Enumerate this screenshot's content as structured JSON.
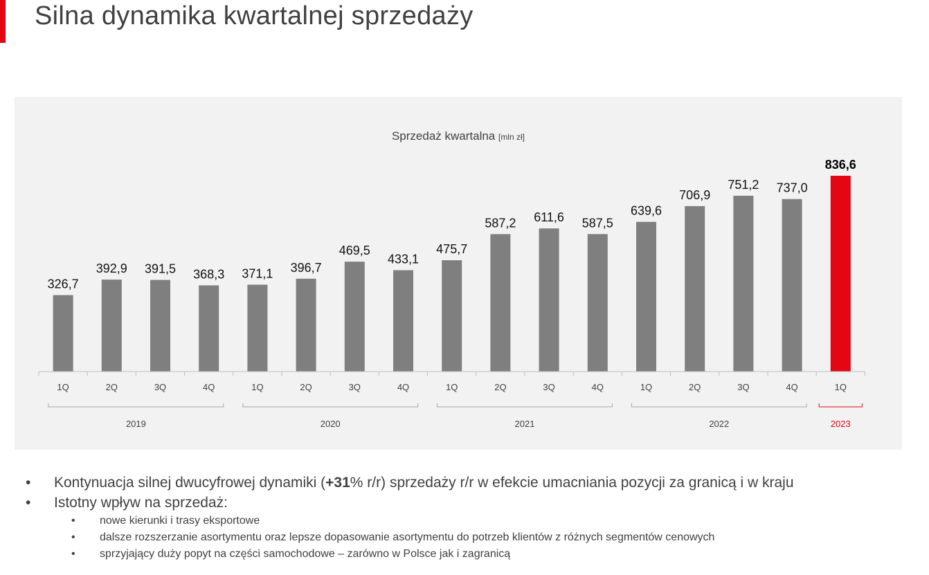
{
  "page": {
    "title": "Silna dynamika kwartalnej sprzedaży",
    "accent_color": "#e30613"
  },
  "chart_data": {
    "type": "bar",
    "title": "Sprzedaż kwartalna",
    "title_unit": "[mln zł]",
    "categories": [
      "1Q",
      "2Q",
      "3Q",
      "4Q",
      "1Q",
      "2Q",
      "3Q",
      "4Q",
      "1Q",
      "2Q",
      "3Q",
      "4Q",
      "1Q",
      "2Q",
      "3Q",
      "4Q",
      "1Q"
    ],
    "values": [
      326.7,
      392.9,
      391.5,
      368.3,
      371.1,
      396.7,
      469.5,
      433.1,
      475.7,
      587.2,
      611.6,
      587.5,
      639.6,
      706.9,
      751.2,
      737.0,
      836.6
    ],
    "value_labels": [
      "326,7",
      "392,9",
      "391,5",
      "368,3",
      "371,1",
      "396,7",
      "469,5",
      "433,1",
      "475,7",
      "587,2",
      "611,6",
      "587,5",
      "639,6",
      "706,9",
      "751,2",
      "737,0",
      "836,6"
    ],
    "groups": [
      {
        "label": "2019",
        "start": 0,
        "end": 3
      },
      {
        "label": "2020",
        "start": 4,
        "end": 7
      },
      {
        "label": "2021",
        "start": 8,
        "end": 11
      },
      {
        "label": "2022",
        "start": 12,
        "end": 15
      },
      {
        "label": "2023",
        "start": 16,
        "end": 16,
        "highlight": true
      }
    ],
    "highlight_index": 16,
    "ylim": [
      0,
      850
    ],
    "bar_color": "#7f7f7f",
    "highlight_color": "#e30613",
    "grid": false,
    "legend": "none"
  },
  "bullets": [
    {
      "parts": [
        {
          "text": "Kontynuacja silnej dwucyfrowej dynamiki (",
          "bold": false
        },
        {
          "text": "+31",
          "bold": true
        },
        {
          "text": "% r/r) sprzedaży r/r w efekcie umacniania pozycji za granicą i w kraju",
          "bold": false
        }
      ],
      "sub": []
    },
    {
      "parts": [
        {
          "text": "Istotny wpływ na sprzedaż:",
          "bold": false
        }
      ],
      "sub": [
        "nowe kierunki i  trasy eksportowe",
        "dalsze rozszerzanie asortymentu oraz lepsze dopasowanie asortymentu do potrzeb klientów z różnych segmentów cenowych",
        "sprzyjający duży popyt na części samochodowe – zarówno w Polsce jak i  zagranicą"
      ]
    }
  ]
}
